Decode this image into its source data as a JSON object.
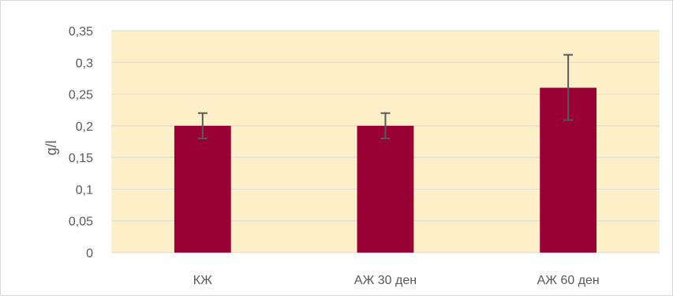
{
  "chart_data": {
    "type": "bar",
    "title": "",
    "xlabel": "",
    "ylabel": "g/l",
    "categories": [
      "КЖ",
      "АЖ 30 ден",
      "АЖ 60 ден"
    ],
    "values": [
      0.2,
      0.2,
      0.26
    ],
    "error_bars": [
      {
        "low": 0.18,
        "high": 0.22
      },
      {
        "low": 0.18,
        "high": 0.22
      },
      {
        "low": 0.209,
        "high": 0.312
      }
    ],
    "ylim": [
      0,
      0.35
    ],
    "yticks": [
      "0",
      "0,05",
      "0,1",
      "0,15",
      "0,2",
      "0,25",
      "0,3",
      "0,35"
    ],
    "ytick_values": [
      0,
      0.05,
      0.1,
      0.15,
      0.2,
      0.25,
      0.3,
      0.35
    ],
    "grid": true,
    "legend": "none",
    "colors": {
      "bar": "#990033",
      "plot_background": "#fdf0c8",
      "gridline": "#d9d9d9",
      "error_bar": "#595959"
    }
  }
}
